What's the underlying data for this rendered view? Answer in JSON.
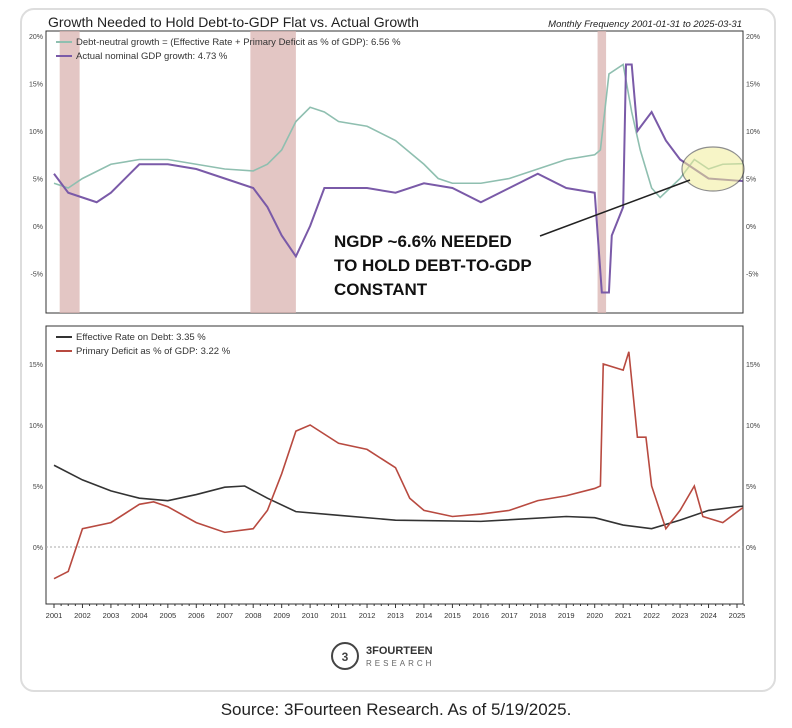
{
  "source": "Source: 3Fourteen Research. As of 5/19/2025.",
  "logo": {
    "name": "3FOURTEEN",
    "sub": "RESEARCH"
  },
  "annotation": [
    "NGDP ~6.6% NEEDED",
    "TO HOLD DEBT-TO-GDP",
    "CONSTANT"
  ],
  "chart_data": [
    {
      "type": "line",
      "title": "Growth Needed to Hold Debt-to-GDP Flat vs. Actual Growth",
      "subtitle": "Monthly Frequency 2001-01-31 to 2025-03-31",
      "ylim": [
        -8,
        20
      ],
      "yticks": [
        -5,
        0,
        5,
        10,
        15,
        20
      ],
      "ytick_labels": [
        "-5%",
        "0%",
        "5%",
        "10%",
        "15%",
        "20%"
      ],
      "recessions": [
        [
          2001.2,
          2001.9
        ],
        [
          2007.9,
          2009.5
        ],
        [
          2020.1,
          2020.4
        ]
      ],
      "series": [
        {
          "name": "Debt-neutral growth = (Effective Rate + Primary Deficit as % of GDP): 6.56 %",
          "color": "#8fbfb0",
          "x": [
            2001,
            2001.5,
            2002,
            2003,
            2004,
            2005,
            2006,
            2007,
            2008,
            2008.5,
            2009,
            2009.5,
            2010,
            2010.5,
            2011,
            2012,
            2013,
            2014,
            2014.5,
            2015,
            2016,
            2017,
            2018,
            2019,
            2020,
            2020.2,
            2020.5,
            2021,
            2021.3,
            2021.6,
            2022,
            2022.3,
            2023,
            2023.5,
            2024,
            2024.5,
            2025.2
          ],
          "y": [
            4.5,
            4,
            5,
            6.5,
            7,
            7,
            6.5,
            6,
            5.8,
            6.5,
            8,
            11,
            12.5,
            12,
            11,
            10.5,
            9,
            6.5,
            5,
            4.5,
            4.5,
            5,
            6,
            7,
            7.5,
            8,
            16,
            17,
            12,
            8,
            4,
            3,
            5,
            7,
            6,
            6.5,
            6.56
          ]
        },
        {
          "name": "Actual nominal GDP growth: 4.73 %",
          "color": "#7a5aa8",
          "x": [
            2001,
            2001.5,
            2002,
            2002.5,
            2003,
            2004,
            2005,
            2006,
            2007,
            2008,
            2008.5,
            2009,
            2009.5,
            2010,
            2010.5,
            2011,
            2012,
            2013,
            2014,
            2015,
            2016,
            2017,
            2018,
            2019,
            2020,
            2020.25,
            2020.5,
            2020.6,
            2021,
            2021.1,
            2021.3,
            2021.5,
            2022,
            2022.5,
            2023,
            2023.5,
            2024,
            2025.2
          ],
          "y": [
            5.5,
            3.5,
            3,
            2.5,
            3.5,
            6.5,
            6.5,
            6,
            5,
            4,
            2,
            -1,
            -3.2,
            0,
            4,
            4,
            4,
            3.5,
            4.5,
            4,
            2.5,
            4,
            5.5,
            4,
            3.5,
            -7,
            -7,
            -1,
            2,
            17,
            17,
            10,
            12,
            9,
            7,
            6,
            5,
            4.73
          ]
        }
      ]
    },
    {
      "type": "line",
      "ylim": [
        -5,
        18
      ],
      "yticks": [
        0,
        5,
        10,
        15
      ],
      "ytick_labels": [
        "0%",
        "5%",
        "10%",
        "15%"
      ],
      "xlim": [
        2000.9,
        2025.5
      ],
      "xticks": [
        "2001",
        "2002",
        "2003",
        "2004",
        "2005",
        "2006",
        "2007",
        "2008",
        "2009",
        "2010",
        "2011",
        "2012",
        "2013",
        "2014",
        "2015",
        "2016",
        "2017",
        "2018",
        "2019",
        "2020",
        "2021",
        "2022",
        "2023",
        "2024",
        "2025"
      ],
      "series": [
        {
          "name": "Effective Rate on Debt: 3.35 %",
          "color": "#333333",
          "x": [
            2001,
            2002,
            2003,
            2004,
            2005,
            2006,
            2007,
            2007.7,
            2008.5,
            2009.5,
            2011,
            2013,
            2016,
            2019,
            2020,
            2021,
            2022,
            2023,
            2024,
            2025.2
          ],
          "y": [
            6.7,
            5.5,
            4.6,
            4,
            3.8,
            4.3,
            4.9,
            5,
            4,
            2.9,
            2.6,
            2.2,
            2.1,
            2.5,
            2.4,
            1.8,
            1.5,
            2.2,
            3,
            3.35
          ]
        },
        {
          "name": "Primary Deficit as % of GDP: 3.22 %",
          "color": "#b84a40",
          "x": [
            2001,
            2001.5,
            2002,
            2003,
            2004,
            2004.5,
            2005,
            2006,
            2007,
            2008,
            2008.5,
            2009,
            2009.5,
            2010,
            2011,
            2012,
            2013,
            2013.5,
            2014,
            2015,
            2016,
            2017,
            2018,
            2019,
            2020,
            2020.2,
            2020.3,
            2021,
            2021.2,
            2021.5,
            2021.8,
            2022,
            2022.5,
            2023,
            2023.5,
            2023.8,
            2024.5,
            2025.2
          ],
          "y": [
            -2.6,
            -2,
            1.5,
            2,
            3.5,
            3.7,
            3.3,
            2,
            1.2,
            1.5,
            3,
            6,
            9.5,
            10,
            8.5,
            8,
            6.5,
            4,
            3,
            2.5,
            2.7,
            3,
            3.8,
            4.2,
            4.8,
            5,
            15,
            14.5,
            16,
            9,
            9,
            5,
            1.5,
            3,
            5,
            2.5,
            2,
            3.22
          ]
        }
      ]
    }
  ]
}
